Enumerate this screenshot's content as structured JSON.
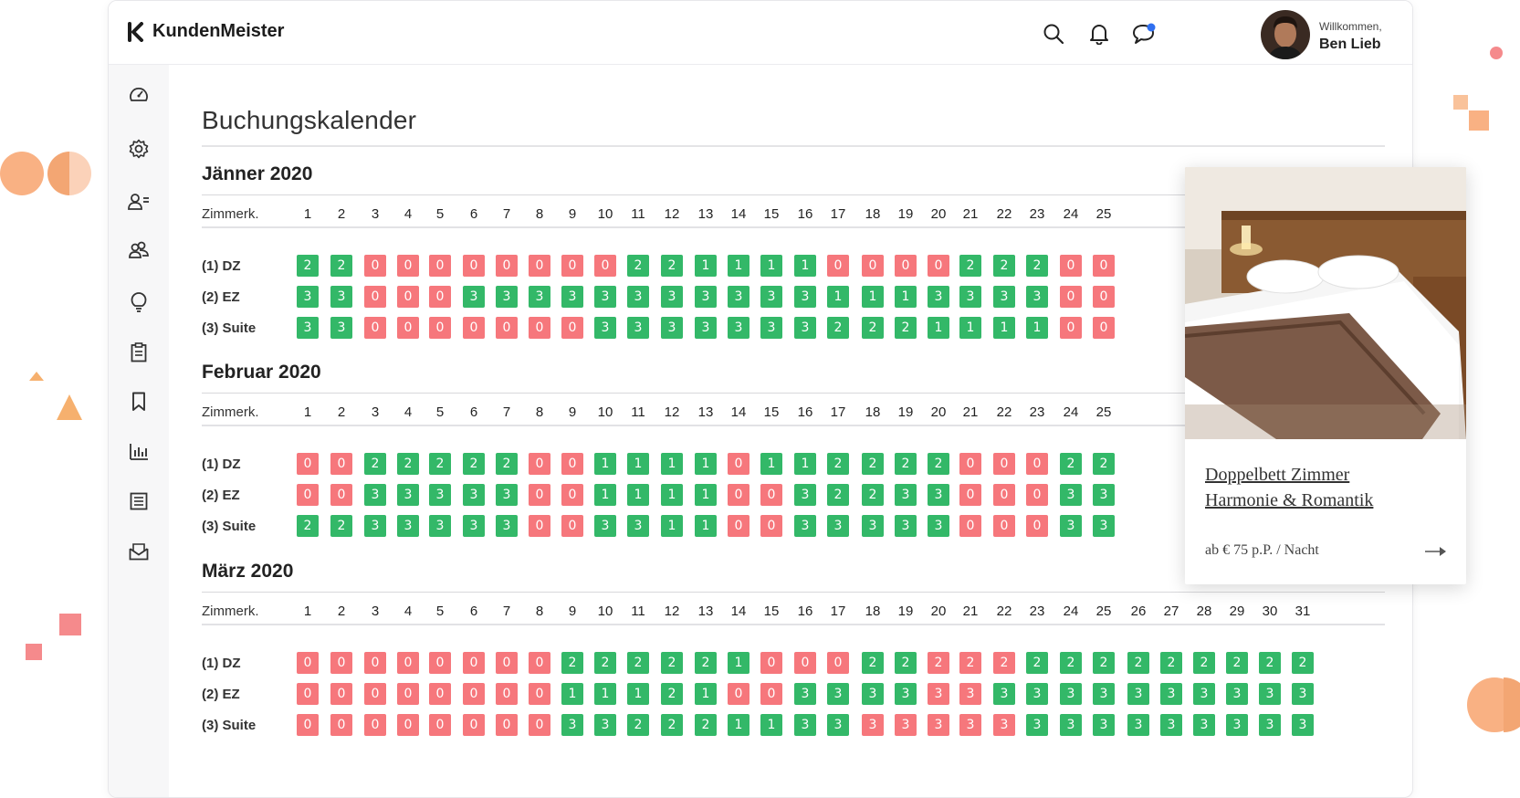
{
  "app": {
    "brand": "KundenMeister"
  },
  "user": {
    "greeting": "Willkommen,",
    "name": "Ben Lieb"
  },
  "colors": {
    "available": "#33b868",
    "booked": "#f6777c"
  },
  "sidebar": {
    "icons": [
      "dashboard-icon",
      "settings-icon",
      "user-list-icon",
      "users-icon",
      "idea-icon",
      "clipboard-icon",
      "bookmark-icon",
      "bar-chart-icon",
      "document-icon",
      "mail-icon"
    ]
  },
  "page": {
    "title": "Buchungskalender"
  },
  "column_label": "Zimmerk.",
  "months": [
    {
      "name": "Jänner 2020",
      "days": [
        "1",
        "2",
        "3",
        "4",
        "5",
        "6",
        "7",
        "8",
        "9",
        "10",
        "11",
        "12",
        "13",
        "14",
        "15",
        "16",
        "17",
        "18",
        "19",
        "20",
        "21",
        "22",
        "23",
        "24",
        "25"
      ],
      "rooms": [
        {
          "label": "(1) DZ",
          "values": [
            2,
            2,
            0,
            0,
            0,
            0,
            0,
            0,
            0,
            0,
            2,
            2,
            1,
            1,
            1,
            1,
            0,
            0,
            0,
            0,
            2,
            2,
            2,
            0,
            0
          ]
        },
        {
          "label": "(2) EZ",
          "values": [
            3,
            3,
            0,
            0,
            0,
            3,
            3,
            3,
            3,
            3,
            3,
            3,
            3,
            3,
            3,
            3,
            1,
            1,
            1,
            3,
            3,
            3,
            3,
            0,
            0
          ]
        },
        {
          "label": "(3) Suite",
          "values": [
            3,
            3,
            0,
            0,
            0,
            0,
            0,
            0,
            0,
            3,
            3,
            3,
            3,
            3,
            3,
            3,
            2,
            2,
            2,
            1,
            1,
            1,
            1,
            0,
            0
          ]
        }
      ]
    },
    {
      "name": "Februar 2020",
      "days": [
        "1",
        "2",
        "3",
        "4",
        "5",
        "6",
        "7",
        "8",
        "9",
        "10",
        "11",
        "12",
        "13",
        "14",
        "15",
        "16",
        "17",
        "18",
        "19",
        "20",
        "21",
        "22",
        "23",
        "24",
        "25"
      ],
      "rooms": [
        {
          "label": "(1) DZ",
          "values": [
            0,
            0,
            2,
            2,
            2,
            2,
            2,
            0,
            0,
            1,
            1,
            1,
            1,
            0,
            1,
            1,
            2,
            2,
            2,
            2,
            0,
            0,
            0,
            2,
            2
          ]
        },
        {
          "label": "(2) EZ",
          "values": [
            0,
            0,
            3,
            3,
            3,
            3,
            3,
            0,
            0,
            1,
            1,
            1,
            1,
            0,
            0,
            3,
            2,
            2,
            3,
            3,
            0,
            0,
            0,
            3,
            3
          ]
        },
        {
          "label": "(3) Suite",
          "values": [
            2,
            2,
            3,
            3,
            3,
            3,
            3,
            0,
            0,
            3,
            3,
            1,
            1,
            0,
            0,
            3,
            3,
            3,
            3,
            3,
            0,
            0,
            0,
            3,
            3
          ]
        }
      ]
    },
    {
      "name": "März 2020",
      "days": [
        "1",
        "2",
        "3",
        "4",
        "5",
        "6",
        "7",
        "8",
        "9",
        "10",
        "11",
        "12",
        "13",
        "14",
        "15",
        "16",
        "17",
        "18",
        "19",
        "20",
        "21",
        "22",
        "23",
        "24",
        "25",
        "26",
        "27",
        "28",
        "29",
        "30",
        "31"
      ],
      "rooms": [
        {
          "label": "(1) DZ",
          "values": [
            0,
            0,
            0,
            0,
            0,
            0,
            0,
            0,
            2,
            2,
            2,
            2,
            2,
            1,
            0,
            0,
            0,
            2,
            2,
            2,
            2,
            2,
            2,
            2,
            2,
            2,
            2,
            2,
            2,
            2,
            2
          ]
        },
        {
          "label": "(2) EZ",
          "values": [
            0,
            0,
            0,
            0,
            0,
            0,
            0,
            0,
            1,
            1,
            1,
            2,
            1,
            0,
            0,
            3,
            3,
            3,
            3,
            3,
            3,
            3,
            3,
            3,
            3,
            3,
            3,
            3,
            3,
            3,
            3
          ]
        },
        {
          "label": "(3) Suite",
          "values": [
            0,
            0,
            0,
            0,
            0,
            0,
            0,
            0,
            3,
            3,
            2,
            2,
            2,
            1,
            1,
            3,
            3,
            3,
            3,
            3,
            3,
            3,
            3,
            3,
            3,
            3,
            3,
            3,
            3,
            3,
            3
          ]
        }
      ],
      "booked_overrides": {
        "(1) DZ": [
          20,
          21,
          22
        ],
        "(2) EZ": [
          20,
          21
        ],
        "(3) Suite": [
          18,
          19,
          20,
          21,
          22
        ]
      }
    }
  ],
  "room_card": {
    "title_line1": "Doppelbett Zimmer",
    "title_line2": "Harmonie & Romantik",
    "price": "ab € 75 p.P. / Nacht",
    "arrow": "arrow-right-icon"
  }
}
